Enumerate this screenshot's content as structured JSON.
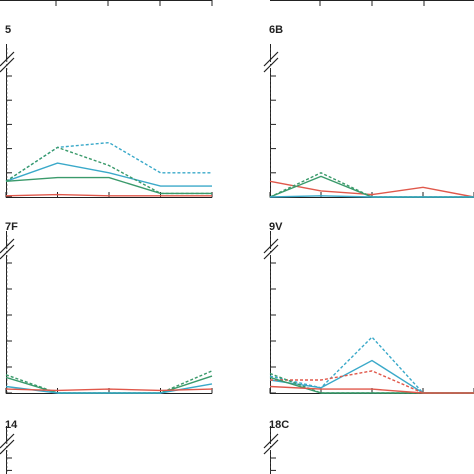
{
  "colors": {
    "axis": "#222222",
    "red": "#e0584b",
    "blue": "#3aa9c9",
    "green": "#3a9a6b",
    "darkgreen": "#2c7a55"
  },
  "chart_data": [
    {
      "type": "line",
      "panel": "5",
      "vline_x": 0.5,
      "x": [
        0,
        1,
        2,
        3,
        4
      ],
      "ylim": [
        0,
        10
      ],
      "axis_break": true,
      "series": [
        {
          "color": "blue",
          "style": "dashed",
          "values": [
            1.3,
            4.1,
            4.5,
            2.0,
            2.0
          ]
        },
        {
          "color": "blue",
          "style": "solid",
          "values": [
            1.3,
            2.8,
            2.0,
            0.9,
            0.9
          ]
        },
        {
          "color": "green",
          "style": "dashed",
          "values": [
            1.3,
            4.1,
            2.6,
            0.3,
            0.3
          ]
        },
        {
          "color": "green",
          "style": "solid",
          "values": [
            1.3,
            1.6,
            1.6,
            0.3,
            0.3
          ]
        },
        {
          "color": "red",
          "style": "solid",
          "values": [
            0.1,
            0.2,
            0.1,
            0.1,
            0.1
          ]
        }
      ]
    },
    {
      "type": "line",
      "panel": "6B",
      "vline_x": 0.5,
      "x": [
        0,
        1,
        2,
        3,
        4
      ],
      "ylim": [
        0,
        10
      ],
      "axis_break": true,
      "series": [
        {
          "color": "red",
          "style": "solid",
          "values": [
            1.3,
            0.5,
            0.2,
            0.8,
            0.0
          ]
        },
        {
          "color": "green",
          "style": "dashed",
          "values": [
            0.0,
            2.0,
            0.0,
            0.0,
            0.0
          ]
        },
        {
          "color": "green",
          "style": "solid",
          "values": [
            0.0,
            1.7,
            0.0,
            0.0,
            0.0
          ]
        },
        {
          "color": "blue",
          "style": "solid",
          "values": [
            0.0,
            0.1,
            0.0,
            0.0,
            0.0
          ]
        }
      ]
    },
    {
      "type": "line",
      "panel": "7F",
      "vline_x": 0.5,
      "x": [
        0,
        1,
        2,
        3,
        4
      ],
      "ylim": [
        0,
        10
      ],
      "axis_break": true,
      "series": [
        {
          "color": "green",
          "style": "dashed",
          "values": [
            1.4,
            0.0,
            0.0,
            0.0,
            1.7
          ]
        },
        {
          "color": "green",
          "style": "solid",
          "values": [
            1.2,
            0.0,
            0.0,
            0.0,
            1.3
          ]
        },
        {
          "color": "blue",
          "style": "solid",
          "values": [
            0.5,
            0.0,
            0.0,
            0.0,
            0.7
          ]
        },
        {
          "color": "red",
          "style": "solid",
          "values": [
            0.3,
            0.2,
            0.3,
            0.2,
            0.3
          ]
        }
      ]
    },
    {
      "type": "line",
      "panel": "9V",
      "vline_x": 0.5,
      "x": [
        0,
        1,
        2,
        3,
        4
      ],
      "ylim": [
        0,
        10
      ],
      "axis_break": true,
      "series": [
        {
          "color": "blue",
          "style": "dashed",
          "values": [
            1.3,
            0.4,
            4.3,
            0.0,
            0.0
          ]
        },
        {
          "color": "blue",
          "style": "solid",
          "values": [
            1.0,
            0.4,
            2.5,
            0.0,
            0.0
          ]
        },
        {
          "color": "red",
          "style": "dashed",
          "values": [
            1.0,
            1.0,
            1.7,
            0.0,
            0.0
          ]
        },
        {
          "color": "green",
          "style": "dashed",
          "values": [
            1.5,
            0.0,
            0.0,
            0.0,
            0.0
          ]
        },
        {
          "color": "green",
          "style": "solid",
          "values": [
            1.2,
            0.0,
            0.0,
            0.0,
            0.0
          ]
        },
        {
          "color": "red",
          "style": "solid",
          "values": [
            0.5,
            0.3,
            0.3,
            0.0,
            0.0
          ]
        }
      ]
    },
    {
      "type": "line",
      "panel": "14",
      "vline_x": 0.5,
      "x": [
        0,
        1,
        2,
        3,
        4
      ],
      "ylim": [
        0,
        10
      ],
      "axis_break": true,
      "series": []
    },
    {
      "type": "line",
      "panel": "18C",
      "vline_x": 0.5,
      "x": [
        0,
        1,
        2,
        3,
        4
      ],
      "ylim": [
        0,
        10
      ],
      "axis_break": true,
      "series": []
    }
  ]
}
